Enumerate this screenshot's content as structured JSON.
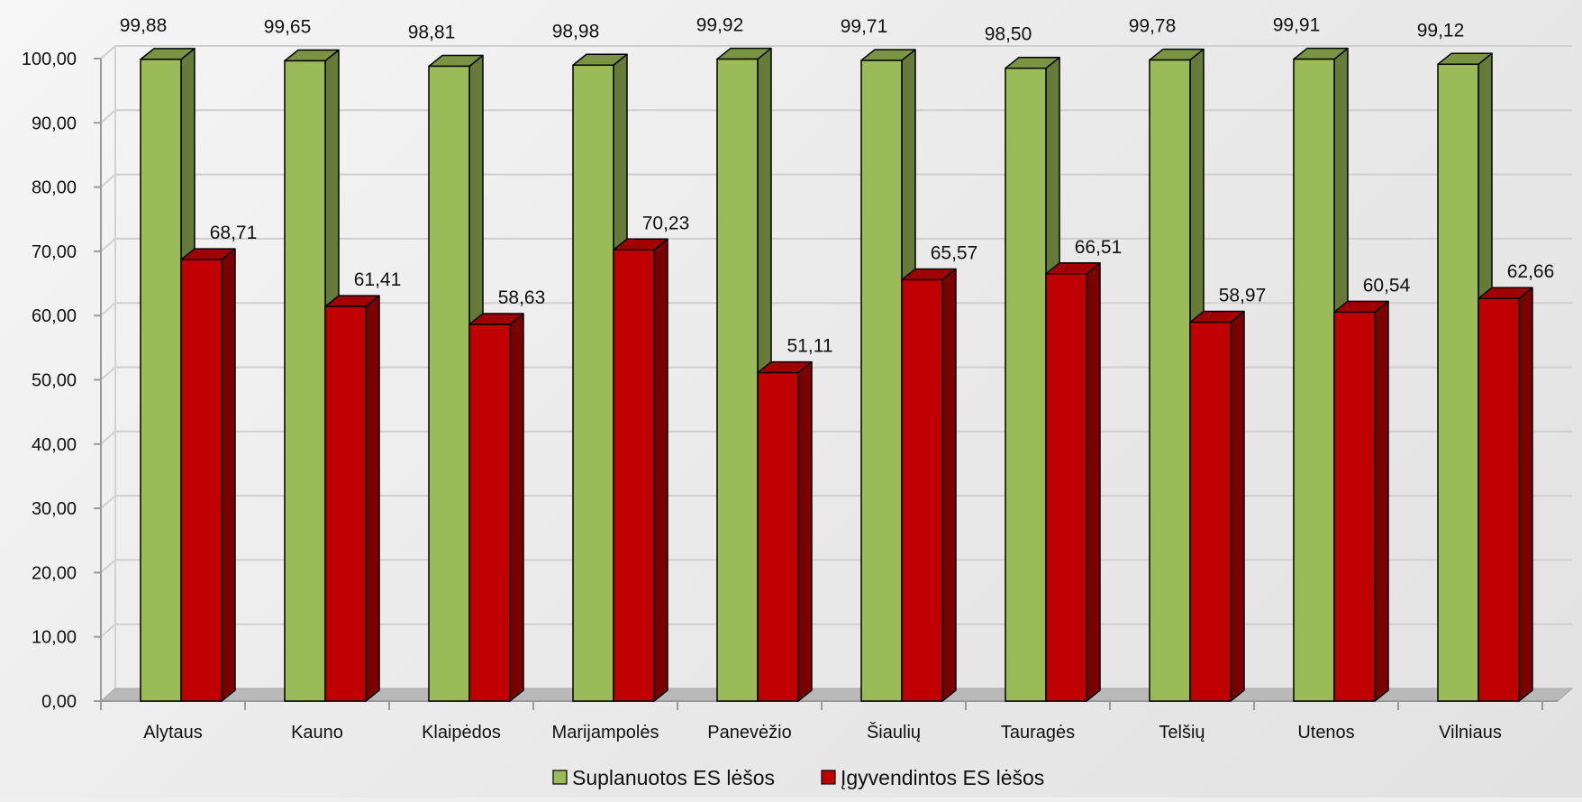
{
  "chart_data": {
    "type": "bar",
    "categories": [
      "Alytaus",
      "Kauno",
      "Klaipėdos",
      "Marijampolės",
      "Panevėžio",
      "Šiaulių",
      "Tauragės",
      "Telšių",
      "Utenos",
      "Vilniaus"
    ],
    "series": [
      {
        "name": "Suplanuotos ES lėšos",
        "values": [
          99.88,
          99.65,
          98.81,
          98.98,
          99.92,
          99.71,
          98.5,
          99.78,
          99.91,
          99.12
        ],
        "labels": [
          "99,88",
          "99,65",
          "98,81",
          "98,98",
          "99,92",
          "99,71",
          "98,50",
          "99,78",
          "99,91",
          "99,12"
        ],
        "color": "#9bbb59",
        "top_color": "#7a9444",
        "side_color": "#667a3a"
      },
      {
        "name": "Įgyvendintos ES lėšos",
        "values": [
          68.71,
          61.41,
          58.63,
          70.23,
          51.11,
          65.57,
          66.51,
          58.97,
          60.54,
          62.66
        ],
        "labels": [
          "68,71",
          "61,41",
          "58,63",
          "70,23",
          "51,11",
          "65,57",
          "66,51",
          "58,97",
          "60,54",
          "62,66"
        ],
        "color": "#c00000",
        "top_color": "#a00000",
        "side_color": "#7a0000"
      }
    ],
    "ylim": [
      0,
      100
    ],
    "yticks": [
      "0,00",
      "10,00",
      "20,00",
      "30,00",
      "40,00",
      "50,00",
      "60,00",
      "70,00",
      "80,00",
      "90,00",
      "100,00"
    ],
    "grid": true,
    "legend": "bottom",
    "style": "3d-clustered-column"
  }
}
